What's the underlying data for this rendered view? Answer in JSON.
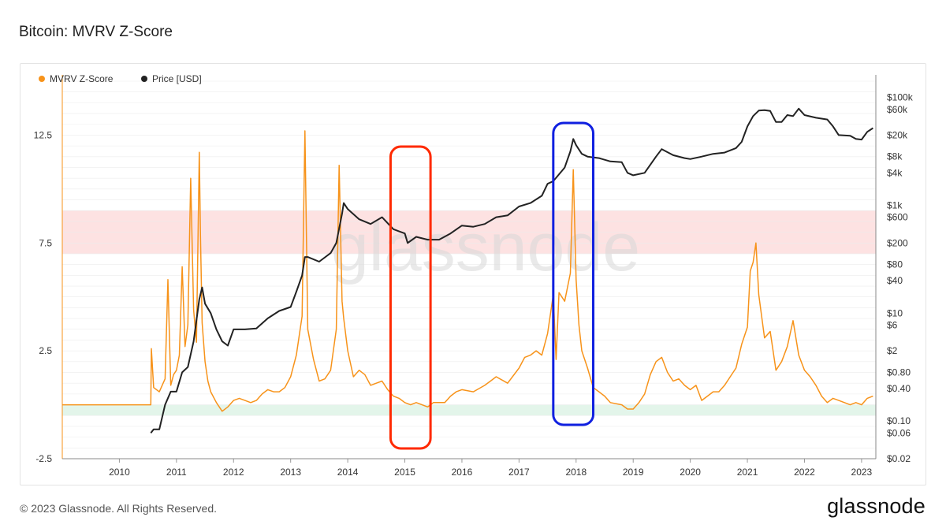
{
  "page": {
    "title": "Bitcoin: MVRV Z-Score",
    "copyright": "© 2023 Glassnode. All Rights Reserved.",
    "logo_text": "glassnode",
    "watermark_text": "glassnode"
  },
  "colors": {
    "mvrv": "#f7931a",
    "price": "#222222",
    "red_zone": "#fde2e2",
    "green_zone": "#e3f5ea",
    "red_box": "#ff2a00",
    "blue_box": "#1020e0",
    "grid": "#ececec",
    "axis_text": "#333333"
  },
  "chart_data": {
    "type": "line",
    "title": "Bitcoin: MVRV Z-Score",
    "legend": {
      "placement": "top-left",
      "items": [
        {
          "name": "MVRV Z-Score",
          "color": "#f7931a"
        },
        {
          "name": "Price [USD]",
          "color": "#222222"
        }
      ]
    },
    "grid": true,
    "x_range": [
      2009.0,
      2023.25
    ],
    "x_ticks": [
      "2010",
      "2011",
      "2012",
      "2013",
      "2014",
      "2015",
      "2016",
      "2017",
      "2018",
      "2019",
      "2020",
      "2021",
      "2022",
      "2023"
    ],
    "y_left": {
      "label": "",
      "range": [
        -2.5,
        15.0
      ],
      "ticks": [
        "12.5",
        "7.5",
        "2.5",
        "-2.5"
      ]
    },
    "y_right": {
      "label": "",
      "scale": "log",
      "range": [
        0.02,
        200000
      ],
      "ticks": [
        "$100k",
        "$60k",
        "$20k",
        "$8k",
        "$4k",
        "$1k",
        "$600",
        "$200",
        "$80",
        "$40",
        "$10",
        "$6",
        "$2",
        "$0.80",
        "$0.40",
        "$0.10",
        "$0.06",
        "$0.02"
      ]
    },
    "zones": [
      {
        "name": "red",
        "y_from": 7.0,
        "y_to": 9.0
      },
      {
        "name": "green",
        "y_from": -0.5,
        "y_to": 0.0
      }
    ],
    "highlight_boxes": [
      {
        "name": "red",
        "x_from": 2014.75,
        "x_to": 2015.45
      },
      {
        "name": "blue",
        "x_from": 2017.6,
        "x_to": 2018.3
      }
    ],
    "series": [
      {
        "name": "MVRV Z-Score",
        "axis": "left",
        "x": [
          2009.0,
          2010.55,
          2010.56,
          2010.6,
          2010.7,
          2010.8,
          2010.85,
          2010.9,
          2010.95,
          2011.0,
          2011.05,
          2011.1,
          2011.15,
          2011.2,
          2011.25,
          2011.3,
          2011.35,
          2011.4,
          2011.42,
          2011.45,
          2011.5,
          2011.55,
          2011.6,
          2011.7,
          2011.8,
          2011.9,
          2012.0,
          2012.1,
          2012.2,
          2012.3,
          2012.4,
          2012.5,
          2012.6,
          2012.7,
          2012.8,
          2012.9,
          2013.0,
          2013.1,
          2013.2,
          2013.25,
          2013.3,
          2013.4,
          2013.5,
          2013.6,
          2013.7,
          2013.8,
          2013.85,
          2013.9,
          2013.93,
          2014.0,
          2014.1,
          2014.2,
          2014.3,
          2014.4,
          2014.5,
          2014.6,
          2014.7,
          2014.8,
          2014.9,
          2015.0,
          2015.1,
          2015.2,
          2015.3,
          2015.4,
          2015.5,
          2015.6,
          2015.7,
          2015.8,
          2015.9,
          2016.0,
          2016.2,
          2016.4,
          2016.5,
          2016.6,
          2016.8,
          2017.0,
          2017.1,
          2017.2,
          2017.3,
          2017.4,
          2017.5,
          2017.6,
          2017.65,
          2017.7,
          2017.8,
          2017.9,
          2017.95,
          2018.0,
          2018.05,
          2018.1,
          2018.2,
          2018.3,
          2018.4,
          2018.5,
          2018.6,
          2018.8,
          2018.9,
          2019.0,
          2019.1,
          2019.2,
          2019.3,
          2019.4,
          2019.5,
          2019.6,
          2019.7,
          2019.8,
          2019.9,
          2020.0,
          2020.1,
          2020.2,
          2020.3,
          2020.4,
          2020.5,
          2020.6,
          2020.7,
          2020.8,
          2020.9,
          2021.0,
          2021.05,
          2021.1,
          2021.15,
          2021.2,
          2021.3,
          2021.4,
          2021.5,
          2021.6,
          2021.7,
          2021.8,
          2021.85,
          2021.9,
          2022.0,
          2022.1,
          2022.2,
          2022.3,
          2022.4,
          2022.5,
          2022.6,
          2022.7,
          2022.8,
          2022.9,
          2023.0,
          2023.1,
          2023.2
        ],
        "y": [
          0.0,
          0.0,
          2.6,
          0.8,
          0.6,
          1.2,
          5.8,
          0.9,
          1.4,
          1.6,
          2.3,
          6.4,
          2.7,
          3.7,
          10.5,
          4.4,
          2.9,
          11.7,
          7.8,
          3.8,
          2.0,
          1.1,
          0.6,
          0.1,
          -0.3,
          -0.1,
          0.2,
          0.3,
          0.2,
          0.1,
          0.2,
          0.5,
          0.7,
          0.6,
          0.6,
          0.8,
          1.3,
          2.3,
          4.1,
          12.7,
          3.5,
          2.1,
          1.1,
          1.2,
          1.6,
          3.5,
          11.1,
          4.8,
          4.0,
          2.5,
          1.3,
          1.6,
          1.4,
          0.9,
          1.0,
          1.1,
          0.7,
          0.4,
          0.3,
          0.1,
          0.0,
          0.1,
          0.0,
          -0.1,
          0.1,
          0.1,
          0.1,
          0.4,
          0.6,
          0.7,
          0.6,
          0.9,
          1.1,
          1.3,
          1.0,
          1.7,
          2.2,
          2.3,
          2.5,
          2.3,
          3.3,
          5.1,
          2.1,
          5.2,
          4.8,
          6.1,
          10.9,
          5.8,
          3.7,
          2.5,
          1.7,
          0.8,
          0.6,
          0.4,
          0.1,
          0.0,
          -0.2,
          -0.2,
          0.1,
          0.5,
          1.4,
          2.0,
          2.2,
          1.5,
          1.1,
          1.2,
          0.9,
          0.7,
          0.9,
          0.2,
          0.4,
          0.6,
          0.6,
          0.9,
          1.3,
          1.7,
          2.8,
          3.6,
          6.2,
          6.6,
          7.5,
          5.1,
          3.1,
          3.4,
          1.6,
          2.0,
          2.7,
          3.9,
          3.1,
          2.3,
          1.6,
          1.3,
          0.9,
          0.4,
          0.1,
          0.3,
          0.2,
          0.1,
          0.0,
          0.1,
          0.0,
          0.3,
          0.4
        ]
      },
      {
        "name": "Price [USD]",
        "axis": "right",
        "x": [
          2010.55,
          2010.6,
          2010.7,
          2010.8,
          2010.9,
          2011.0,
          2011.1,
          2011.2,
          2011.3,
          2011.4,
          2011.45,
          2011.5,
          2011.6,
          2011.7,
          2011.8,
          2011.9,
          2012.0,
          2012.2,
          2012.4,
          2012.6,
          2012.8,
          2013.0,
          2013.1,
          2013.2,
          2013.25,
          2013.3,
          2013.5,
          2013.7,
          2013.8,
          2013.9,
          2013.93,
          2014.0,
          2014.2,
          2014.4,
          2014.6,
          2014.8,
          2015.0,
          2015.05,
          2015.2,
          2015.4,
          2015.6,
          2015.8,
          2016.0,
          2016.2,
          2016.4,
          2016.6,
          2016.8,
          2017.0,
          2017.2,
          2017.4,
          2017.5,
          2017.6,
          2017.8,
          2017.9,
          2017.95,
          2018.0,
          2018.1,
          2018.2,
          2018.4,
          2018.6,
          2018.8,
          2018.9,
          2019.0,
          2019.2,
          2019.4,
          2019.5,
          2019.7,
          2019.9,
          2020.0,
          2020.2,
          2020.4,
          2020.6,
          2020.8,
          2020.9,
          2021.0,
          2021.1,
          2021.2,
          2021.3,
          2021.4,
          2021.5,
          2021.6,
          2021.7,
          2021.8,
          2021.9,
          2022.0,
          2022.2,
          2022.4,
          2022.5,
          2022.6,
          2022.8,
          2022.9,
          2023.0,
          2023.1,
          2023.2
        ],
        "y": [
          0.06,
          0.07,
          0.07,
          0.2,
          0.35,
          0.35,
          0.8,
          1.0,
          3.0,
          18.0,
          30.0,
          15.0,
          10.0,
          5.0,
          3.0,
          2.5,
          5.0,
          5.0,
          5.2,
          8.0,
          11.0,
          13.0,
          25.0,
          50.0,
          110.0,
          110.0,
          90.0,
          130.0,
          200.0,
          700.0,
          1100.0,
          850.0,
          550.0,
          450.0,
          600.0,
          360.0,
          300.0,
          200.0,
          260.0,
          230.0,
          230.0,
          300.0,
          420.0,
          400.0,
          450.0,
          600.0,
          650.0,
          950.0,
          1100.0,
          1500.0,
          2500.0,
          2800.0,
          5000.0,
          10000.0,
          17000.0,
          13000.0,
          9000.0,
          8000.0,
          7500.0,
          6500.0,
          6300.0,
          4000.0,
          3600.0,
          4000.0,
          8000.0,
          11000.0,
          8500.0,
          7500.0,
          7200.0,
          8000.0,
          9000.0,
          9500.0,
          11500.0,
          15000.0,
          29000.0,
          45000.0,
          57000.0,
          58000.0,
          56000.0,
          35000.0,
          35000.0,
          47000.0,
          45000.0,
          62000.0,
          47000.0,
          42000.0,
          39000.0,
          29000.0,
          20000.0,
          19500.0,
          17000.0,
          16500.0,
          23000.0,
          27000.0
        ]
      }
    ]
  }
}
